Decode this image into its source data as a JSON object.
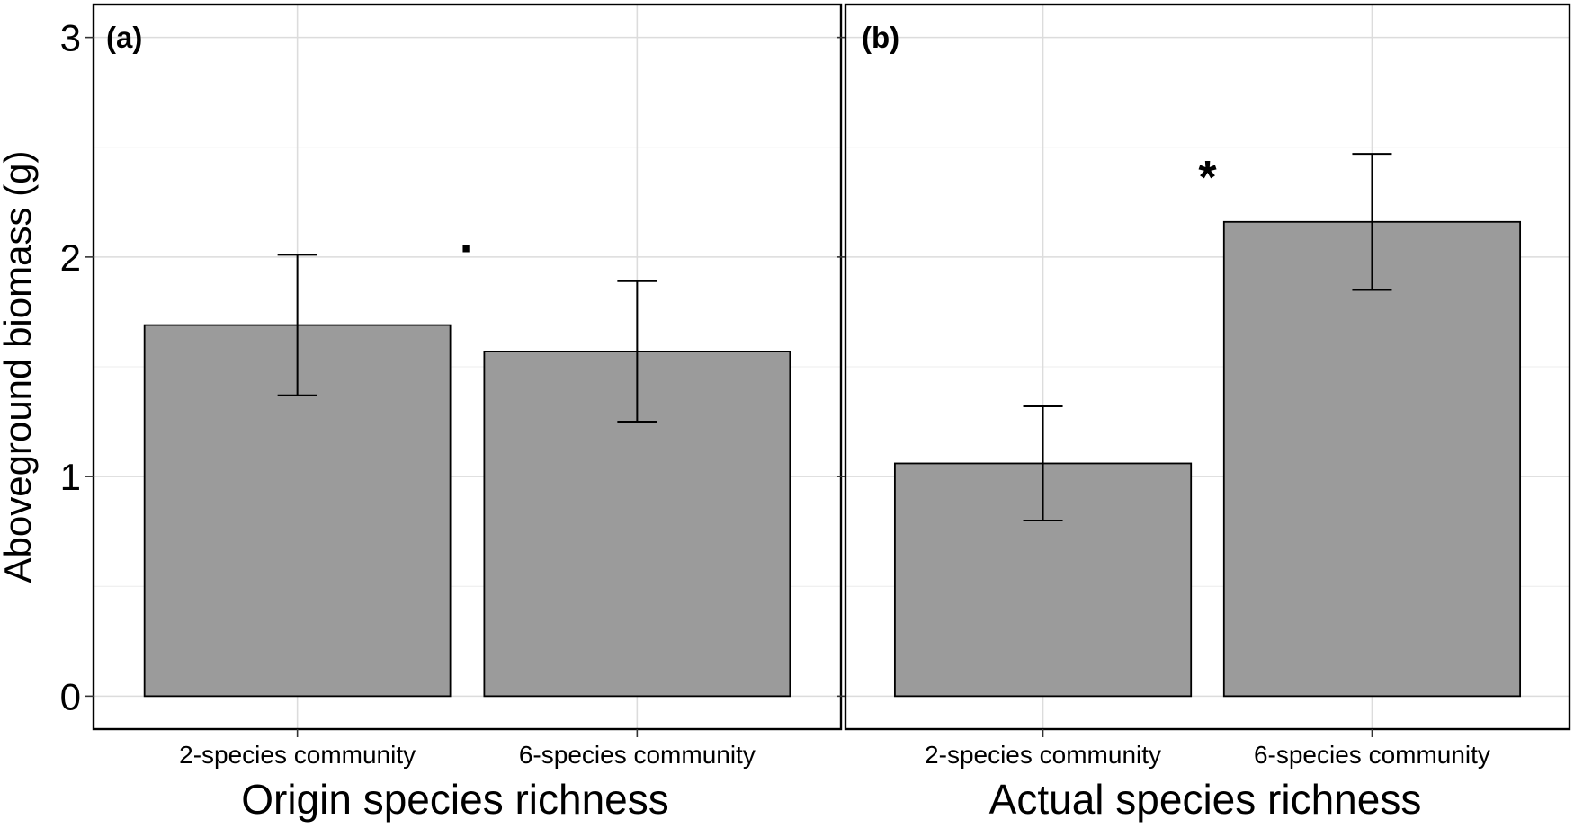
{
  "chart_data": [
    {
      "type": "bar",
      "panel": "(a)",
      "categories": [
        "2-species community",
        "6-species community"
      ],
      "values": [
        1.69,
        1.57
      ],
      "error_bars": [
        [
          1.37,
          2.01
        ],
        [
          1.25,
          1.89
        ]
      ],
      "significance": "·",
      "xlabel": "Origin species richness",
      "ylabel": "Aboveground biomass (g)",
      "ylim": [
        -0.15,
        3.15
      ],
      "yticks": [
        "0",
        "1",
        "2",
        "3"
      ],
      "bar_color": "#9b9b9b",
      "grid": true
    },
    {
      "type": "bar",
      "panel": "(b)",
      "categories": [
        "2-species community",
        "6-species community"
      ],
      "values": [
        1.06,
        2.16
      ],
      "error_bars": [
        [
          0.8,
          1.32
        ],
        [
          1.85,
          2.47
        ]
      ],
      "significance": "*",
      "xlabel": "Actual species richness",
      "ylabel": "",
      "ylim": [
        -0.15,
        3.15
      ],
      "yticks": [
        "0",
        "1",
        "2",
        "3"
      ],
      "bar_color": "#9b9b9b",
      "grid": true
    }
  ]
}
